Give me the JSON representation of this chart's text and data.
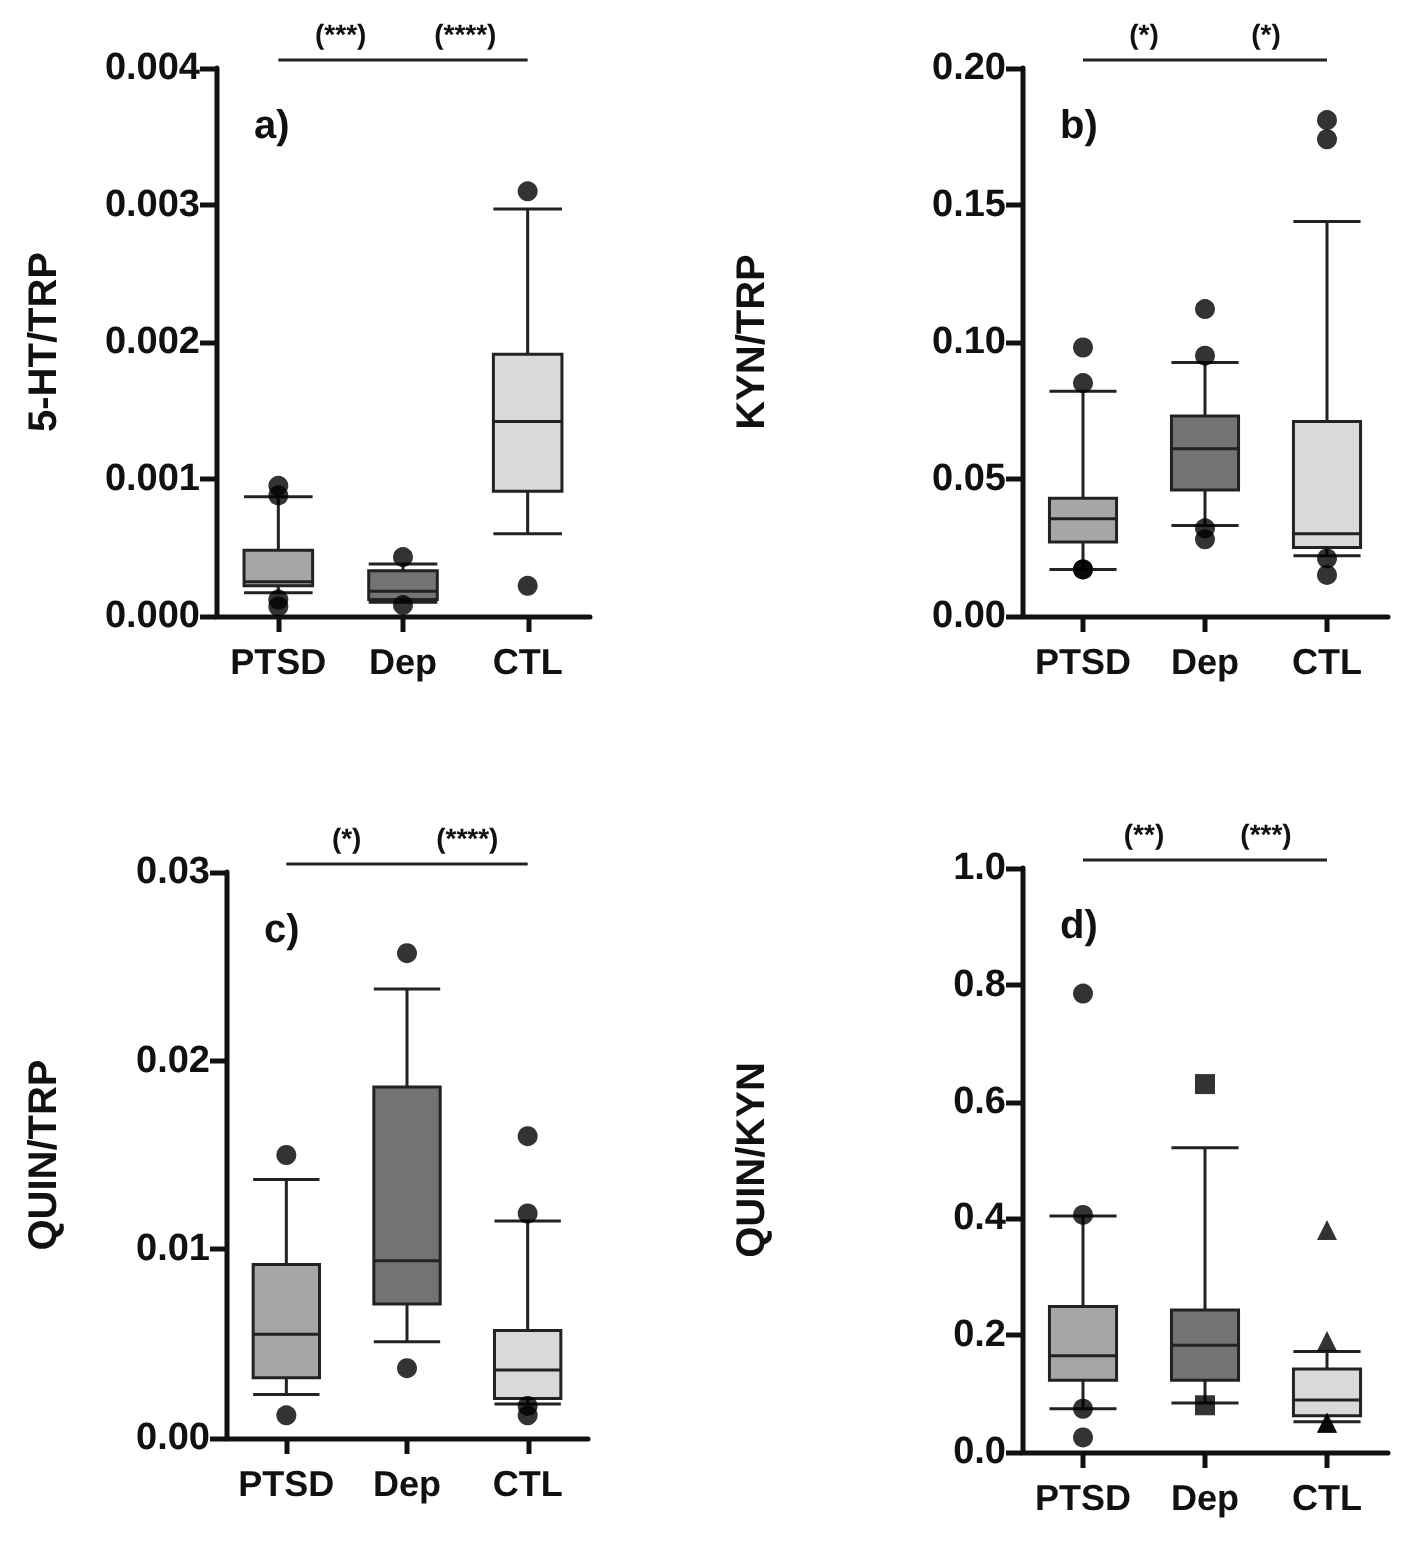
{
  "chart_data": [
    {
      "type": "box",
      "title": "a)",
      "ylabel": "5-HT/TRP",
      "categories": [
        "PTSD",
        "Dep",
        "CTL"
      ],
      "ylim": [
        0,
        0.004
      ],
      "yticks": [
        {
          "value": 0,
          "label": "0.000"
        },
        {
          "value": 0.001,
          "label": "0.001"
        },
        {
          "value": 0.002,
          "label": "0.002"
        },
        {
          "value": 0.003,
          "label": "0.003"
        },
        {
          "value": 0.004,
          "label": "0.004"
        }
      ],
      "annotations": [
        "(***)",
        "(****)"
      ],
      "grid": false,
      "series": [
        {
          "color": "#a6a6a6",
          "marker": "circle",
          "boxes": [
            {
              "low": 0.00017,
              "q1": 0.00022,
              "median": 0.00025,
              "q3": 0.00048,
              "high": 0.00087,
              "outliers": [
                0.00088,
                0.00095,
                7e-05,
                0.00012
              ]
            },
            null,
            null
          ]
        },
        {
          "color": "#737373",
          "marker": "circle",
          "boxes": [
            null,
            {
              "low": 0.0001,
              "q1": 0.00012,
              "median": 0.00018,
              "q3": 0.00033,
              "high": 0.00038,
              "outliers": [
                0.00043,
                8e-05
              ]
            },
            null
          ]
        },
        {
          "color": "#d9d9d9",
          "marker": "circle",
          "boxes": [
            null,
            null,
            {
              "low": 0.0006,
              "q1": 0.00091,
              "median": 0.00142,
              "q3": 0.00191,
              "high": 0.00297,
              "outliers": [
                0.0031,
                0.00022
              ]
            }
          ]
        }
      ]
    },
    {
      "type": "box",
      "title": "b)",
      "ylabel": "KYN/TRP",
      "categories": [
        "PTSD",
        "Dep",
        "CTL"
      ],
      "ylim": [
        0,
        0.2
      ],
      "yticks": [
        {
          "value": 0,
          "label": "0.00"
        },
        {
          "value": 0.05,
          "label": "0.05"
        },
        {
          "value": 0.1,
          "label": "0.10"
        },
        {
          "value": 0.15,
          "label": "0.15"
        },
        {
          "value": 0.2,
          "label": "0.20"
        }
      ],
      "annotations": [
        "(*)",
        "(*)"
      ],
      "grid": false,
      "series": [
        {
          "color": "#a6a6a6",
          "marker": "circle",
          "boxes": [
            {
              "low": 0.017,
              "q1": 0.027,
              "median": 0.0355,
              "q3": 0.043,
              "high": 0.082,
              "outliers": [
                0.098,
                0.085,
                0.017,
                0.017
              ]
            },
            null,
            null
          ]
        },
        {
          "color": "#737373",
          "marker": "circle",
          "boxes": [
            null,
            {
              "low": 0.033,
              "q1": 0.046,
              "median": 0.061,
              "q3": 0.073,
              "high": 0.0925,
              "outliers": [
                0.112,
                0.095,
                0.028,
                0.032
              ]
            },
            null
          ]
        },
        {
          "color": "#d9d9d9",
          "marker": "circle",
          "boxes": [
            null,
            null,
            {
              "low": 0.022,
              "q1": 0.025,
              "median": 0.03,
              "q3": 0.071,
              "high": 0.144,
              "outliers": [
                0.181,
                0.174,
                0.021,
                0.015
              ]
            }
          ]
        }
      ]
    },
    {
      "type": "box",
      "title": "c)",
      "ylabel": "QUIN/TRP",
      "categories": [
        "PTSD",
        "Dep",
        "CTL"
      ],
      "ylim": [
        0,
        0.03
      ],
      "yticks": [
        {
          "value": 0,
          "label": "0.00"
        },
        {
          "value": 0.01,
          "label": "0.01"
        },
        {
          "value": 0.02,
          "label": "0.02"
        },
        {
          "value": 0.03,
          "label": "0.03"
        }
      ],
      "annotations": [
        "(*)",
        "(****)"
      ],
      "grid": false,
      "series": [
        {
          "color": "#a6a6a6",
          "marker": "circle",
          "boxes": [
            {
              "low": 0.0023,
              "q1": 0.0032,
              "median": 0.0055,
              "q3": 0.0092,
              "high": 0.0137,
              "outliers": [
                0.015,
                0.0012
              ]
            },
            null,
            null
          ]
        },
        {
          "color": "#737373",
          "marker": "circle",
          "boxes": [
            null,
            {
              "low": 0.0051,
              "q1": 0.0071,
              "median": 0.0094,
              "q3": 0.0186,
              "high": 0.0238,
              "outliers": [
                0.0257,
                0.0037
              ]
            },
            null
          ]
        },
        {
          "color": "#d9d9d9",
          "marker": "circle",
          "boxes": [
            null,
            null,
            {
              "low": 0.0018,
              "q1": 0.0021,
              "median": 0.0036,
              "q3": 0.0057,
              "high": 0.0115,
              "outliers": [
                0.016,
                0.0119,
                0.0012,
                0.0017
              ]
            }
          ]
        }
      ]
    },
    {
      "type": "box",
      "title": "d)",
      "ylabel": "QUIN/KYN",
      "categories": [
        "PTSD",
        "Dep",
        "CTL"
      ],
      "ylim": [
        0,
        1
      ],
      "yticks": [
        {
          "value": 0,
          "label": "0.0"
        },
        {
          "value": 0.2,
          "label": "0.2"
        },
        {
          "value": 0.4,
          "label": "0.4"
        },
        {
          "value": 0.6,
          "label": "0.6"
        },
        {
          "value": 0.8,
          "label": "0.8"
        },
        {
          "value": 1,
          "label": "1.0"
        }
      ],
      "annotations": [
        "(**)",
        "(***)"
      ],
      "grid": false,
      "series": [
        {
          "color": "#a6a6a6",
          "marker": "circle",
          "boxes": [
            {
              "low": 0.074,
              "q1": 0.123,
              "median": 0.165,
              "q3": 0.249,
              "high": 0.404,
              "outliers": [
                0.785,
                0.406,
                0.074,
                0.025
              ]
            },
            null,
            null
          ]
        },
        {
          "color": "#737373",
          "marker": "square",
          "boxes": [
            null,
            {
              "low": 0.084,
              "q1": 0.123,
              "median": 0.183,
              "q3": 0.243,
              "high": 0.521,
              "outliers": [
                0.63,
                0.08
              ]
            },
            null
          ]
        },
        {
          "color": "#d9d9d9",
          "marker": "triangle",
          "boxes": [
            null,
            null,
            {
              "low": 0.052,
              "q1": 0.062,
              "median": 0.089,
              "q3": 0.142,
              "high": 0.172,
              "outliers": [
                0.38,
                0.19,
                0.05,
                0.05
              ]
            }
          ]
        }
      ]
    }
  ]
}
